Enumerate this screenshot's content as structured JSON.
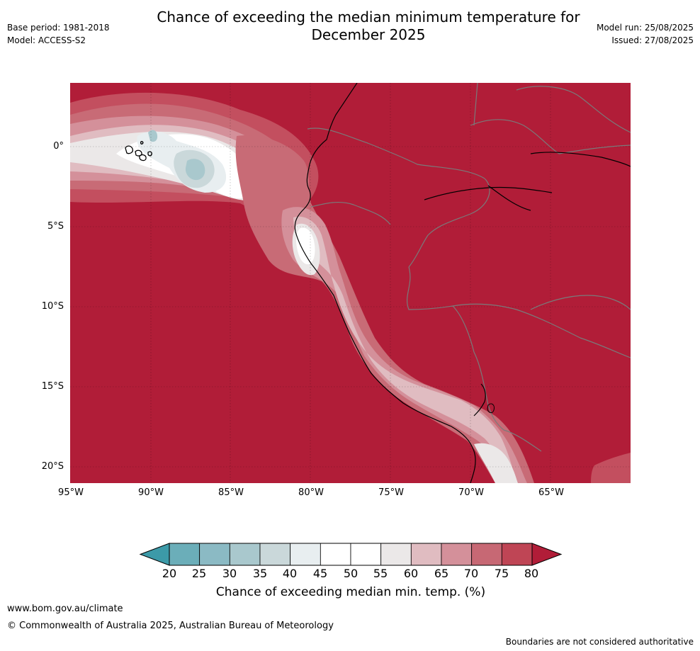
{
  "header": {
    "title_line1": "Chance of exceeding the median minimum temperature for",
    "title_line2": "December 2025",
    "base_period": "Base period: 1981-2018",
    "model": "Model: ACCESS-S2",
    "model_run": "Model run: 25/08/2025",
    "issued": "Issued: 27/08/2025"
  },
  "map": {
    "background_color": "#b11d38",
    "latitude_labels": [
      "0°",
      "5°S",
      "10°S",
      "15°S",
      "20°S"
    ],
    "longitude_labels": [
      "95°W",
      "90°W",
      "85°W",
      "80°W",
      "75°W",
      "70°W",
      "65°W"
    ],
    "region": "Western South America (Galapagos, Ecuador, Peru, northern Chile)"
  },
  "colorbar": {
    "ticks": [
      "20",
      "25",
      "30",
      "35",
      "40",
      "45",
      "50",
      "55",
      "60",
      "65",
      "70",
      "75",
      "80"
    ],
    "colors": [
      "#3c9aa8",
      "#6baeb9",
      "#8bbac4",
      "#a9c8cd",
      "#cad8da",
      "#e8eef0",
      "#ffffff",
      "#ffffff",
      "#ebe8e8",
      "#e0bcc1",
      "#d4909a",
      "#c76874",
      "#bf4555",
      "#b11d38"
    ],
    "title": "Chance of exceeding median min. temp. (%)"
  },
  "footer": {
    "url": "www.bom.gov.au/climate",
    "copyright": "© Commonwealth of Australia 2025, Australian Bureau of Meteorology",
    "disclaimer": "Boundaries are not considered authoritative"
  }
}
